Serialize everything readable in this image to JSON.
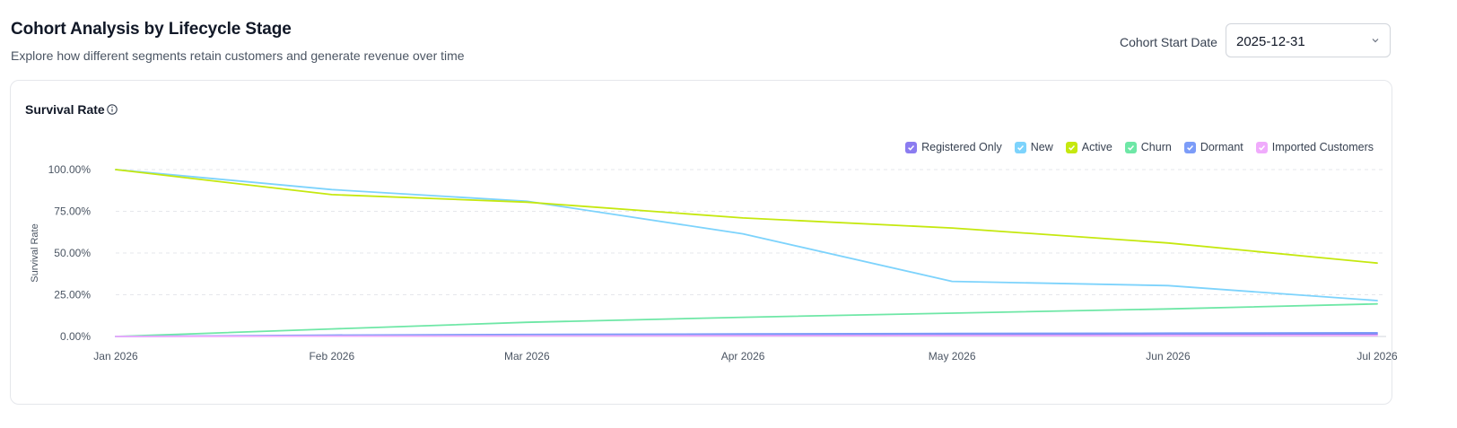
{
  "header": {
    "title": "Cohort Analysis by Lifecycle Stage",
    "subtitle": "Explore how different segments retain customers and generate revenue over time"
  },
  "cohort_filter": {
    "label": "Cohort Start Date",
    "value": "2025-12-31",
    "icon": "chevron-down-icon"
  },
  "card": {
    "title": "Survival Rate",
    "info_icon": "info-icon"
  },
  "legend": [
    {
      "label": "Registered Only",
      "color": "#8b7cf0"
    },
    {
      "label": "New",
      "color": "#7dd3fc"
    },
    {
      "label": "Active",
      "color": "#c5e80f"
    },
    {
      "label": "Churn",
      "color": "#6ee7a6"
    },
    {
      "label": "Dormant",
      "color": "#7c9cf8"
    },
    {
      "label": "Imported Customers",
      "color": "#f0abfc"
    }
  ],
  "chart_data": {
    "type": "line",
    "ylabel": "Survival Rate",
    "xlabel": "",
    "x": [
      "Jan 2026",
      "Feb 2026",
      "Mar 2026",
      "Apr 2026",
      "May 2026",
      "Jun 2026",
      "Jul 2026"
    ],
    "x_dates": [
      "2026-01-01",
      "2026-02-01",
      "2026-03-01",
      "2026-04-01",
      "2026-05-01",
      "2026-06-01",
      "2026-07-01"
    ],
    "y_ticks": [
      "0.00%",
      "25.00%",
      "50.00%",
      "75.00%",
      "100.00%"
    ],
    "ylim": [
      0,
      100
    ],
    "grid": true,
    "legend_position": "top-right",
    "series": [
      {
        "name": "Registered Only",
        "color": "#8b7cf0",
        "values": [
          0,
          0.5,
          0.8,
          1.0,
          1.2,
          1.4,
          1.5
        ]
      },
      {
        "name": "New",
        "color": "#7dd3fc",
        "values": [
          100,
          88,
          81,
          61.5,
          33,
          30.5,
          21.5
        ]
      },
      {
        "name": "Active",
        "color": "#c5e80f",
        "values": [
          100,
          85,
          80.5,
          71,
          65,
          56,
          44
        ]
      },
      {
        "name": "Churn",
        "color": "#6ee7a6",
        "values": [
          0,
          4.5,
          8.5,
          11.5,
          14,
          16.5,
          19.5
        ]
      },
      {
        "name": "Dormant",
        "color": "#7c9cf8",
        "values": [
          0,
          0.8,
          1.2,
          1.5,
          1.8,
          2.0,
          2.2
        ]
      },
      {
        "name": "Imported Customers",
        "color": "#f0abfc",
        "values": [
          0,
          0.2,
          0.3,
          0.4,
          0.5,
          0.5,
          0.6
        ]
      }
    ]
  }
}
